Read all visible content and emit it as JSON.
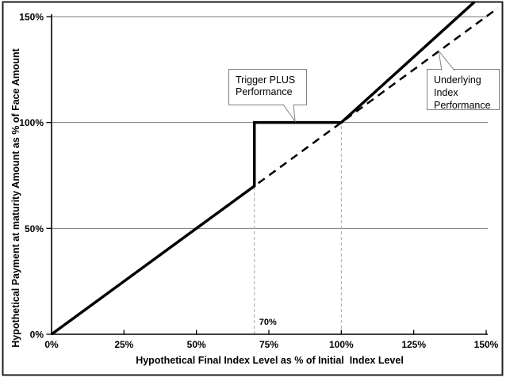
{
  "figure": {
    "background": "#ffffff",
    "border_color": "#1f1f1f",
    "line_color": "#000000",
    "grid_color": "#7a7a7a",
    "guide_color": "#a8a8a8",
    "callout_border_color": "#808080"
  },
  "chart_data": {
    "type": "line",
    "title": "",
    "xlabel": "Hypothetical Final Index Level as % of Initial  Index Level",
    "ylabel": "Hypothetical Payment at maturity Amount as % of Face Amount",
    "xlim": [
      0,
      150
    ],
    "ylim": [
      0,
      150
    ],
    "grid": "horizontal-only",
    "x_tick_values": [
      0,
      25,
      50,
      75,
      100,
      125,
      150
    ],
    "x_tick_labels": [
      "0%",
      "25%",
      "50%",
      "75%",
      "100%",
      "125%",
      "150%"
    ],
    "y_tick_values": [
      0,
      50,
      100,
      150
    ],
    "y_tick_labels": [
      "0%",
      "50%",
      "100%",
      "150%"
    ],
    "grid_y_values": [
      50,
      100,
      150
    ],
    "series": [
      {
        "name": "Trigger PLUS Performance",
        "style": "solid",
        "color": "#000000",
        "width": 3.5,
        "points": [
          [
            0,
            0
          ],
          [
            70,
            70
          ],
          [
            70,
            100
          ],
          [
            100,
            100
          ],
          [
            146,
            157
          ]
        ]
      },
      {
        "name": "Underlying Index Performance",
        "style": "dashed",
        "color": "#000000",
        "width": 2.5,
        "dash": "10,7",
        "points": [
          [
            0,
            0
          ],
          [
            154,
            154
          ]
        ]
      }
    ],
    "guides": [
      {
        "x": 70,
        "y_top": 70
      },
      {
        "x": 100,
        "y_top": 100
      }
    ],
    "annotations": [
      {
        "text": "70%",
        "x": 70,
        "y": 0
      }
    ],
    "legend_position": "callouts-on-plot"
  },
  "callouts": {
    "trigger": {
      "lines": [
        "Trigger PLUS",
        "Performance"
      ]
    },
    "underlying": {
      "lines": [
        "Underlying",
        "Index",
        "Performance"
      ]
    }
  }
}
